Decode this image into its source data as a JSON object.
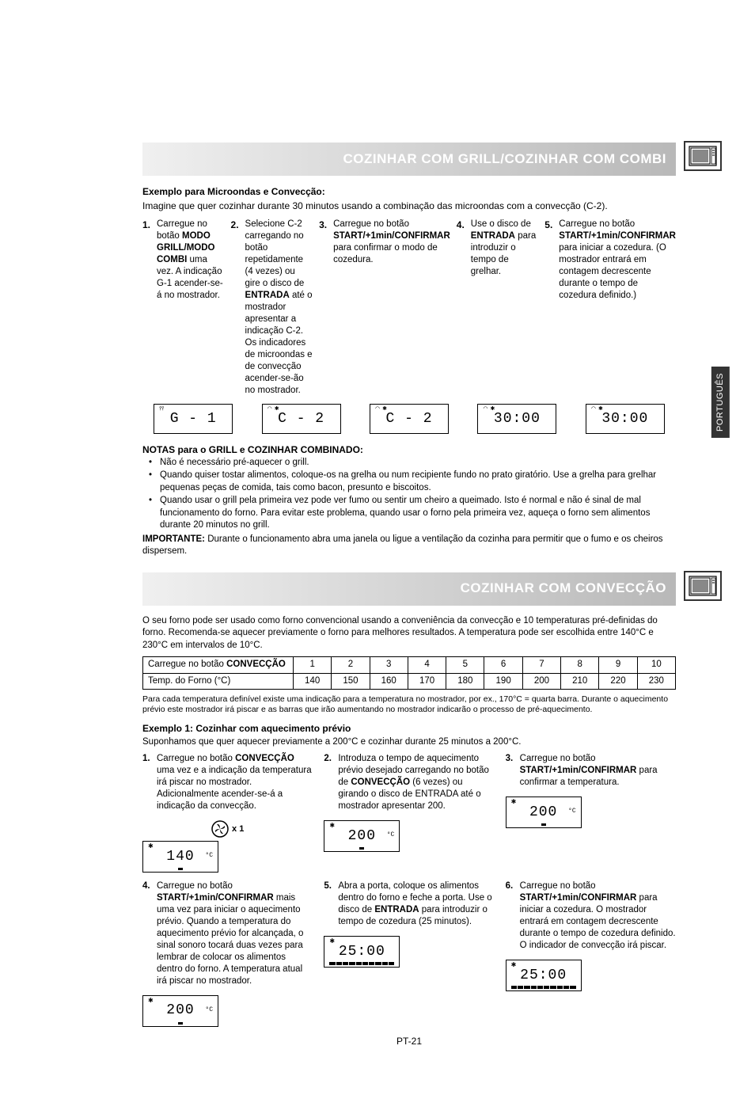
{
  "side_tab": "PORTUGUÊS",
  "page_number": "PT-21",
  "section1": {
    "banner": "COZINHAR COM GRILL/COZINHAR COM COMBI",
    "subtitle": "Exemplo para Microondas e Convecção:",
    "intro": "Imagine que quer cozinhar durante 30 minutos usando a combinação das microondas com a convecção (C-2).",
    "steps": [
      {
        "num": "1.",
        "html": "Carregue no botão <b>MODO GRILL/MODO COMBI</b> uma vez. A indicação G-1 acender-se-á no mostrador."
      },
      {
        "num": "2.",
        "html": "Selecione C-2 carregando no botão repetidamente (4 vezes) ou gire o disco de <b>ENTRADA</b> até o mostrador apresentar a indicação C-2. Os indicadores de microondas e de convecção acender-se-ão no mostrador."
      },
      {
        "num": "3.",
        "html": "Carregue no botão <b>START/+1min/CONFIRMAR</b> para confirmar o modo de cozedura."
      },
      {
        "num": "4.",
        "html": "Use o disco de <b>ENTRADA</b> para introduzir o tempo de grelhar."
      },
      {
        "num": "5.",
        "html": "Carregue no botão <b>START/+1min/CONFIRMAR</b> para iniciar a cozedura. (O mostrador entrará em contagem decrescente durante o tempo de cozedura definido.)"
      }
    ],
    "displays": [
      "G - 1",
      "C - 2",
      "C - 2",
      "30:00",
      "30:00"
    ],
    "notes_title": "NOTAS para o GRILL e COZINHAR COMBINADO:",
    "notes": [
      "Não é necessário pré-aquecer o grill.",
      "Quando quiser tostar alimentos, coloque-os na grelha ou num recipiente fundo no prato giratório. Use a grelha para grelhar pequenas peças de comida, tais como bacon, presunto e biscoitos.",
      "Quando usar o grill pela primeira vez pode ver fumo ou sentir um cheiro a queimado. Isto é normal e não é sinal de mal funcionamento do forno. Para evitar este problema, quando usar o forno pela primeira vez, aqueça o forno sem alimentos durante 20 minutos no grill."
    ],
    "important_label": "IMPORTANTE:",
    "important_text": " Durante o funcionamento abra uma janela ou ligue a ventilação da cozinha para permitir que o fumo e os cheiros dispersem."
  },
  "section2": {
    "banner": "COZINHAR COM CONVECÇÃO",
    "intro": "O seu forno pode ser usado como forno convencional usando a conveniência da convecção e 10 temperaturas pré-definidas do forno. Recomenda-se aquecer previamente o forno para melhores resultados. A temperatura pode ser escolhida entre 140°C e 230°C em intervalos de 10°C.",
    "table": {
      "row1_label_html": "Carregue no botão <b>CONVECÇÃO</b>",
      "row1": [
        "1",
        "2",
        "3",
        "4",
        "5",
        "6",
        "7",
        "8",
        "9",
        "10"
      ],
      "row2_label": "Temp. do Forno (°C)",
      "row2": [
        "140",
        "150",
        "160",
        "170",
        "180",
        "190",
        "200",
        "210",
        "220",
        "230"
      ]
    },
    "small_note": "Para cada temperatura definível existe uma indicação para a temperatura no mostrador, por ex., 170°C = quarta barra. Durante o aquecimento prévio este mostrador irá piscar e as barras que irão aumentando no mostrador indicarão o processo de pré-aquecimento.",
    "ex_title": "Exemplo 1: Cozinhar com aquecimento prévio",
    "ex_intro": "Suponhamos que quer aquecer previamente a 200°C e cozinhar durante 25 minutos a 200°C.",
    "steps_row1": [
      {
        "num": "1.",
        "html": "Carregue no botão <b>CONVECÇÃO</b> uma vez e a indicação da temperatura irá piscar no mostrador. Adicionalmente acender-se-á a indicação da convecção.",
        "display": "140",
        "unit": "°C",
        "fan": "x 1"
      },
      {
        "num": "2.",
        "html": "Introduza o tempo de aquecimento prévio desejado carregando no botão de <b>CONVECÇÃO</b> (6 vezes) ou girando o disco de ENTRADA até o mostrador apresentar 200.",
        "display": "200",
        "unit": "°C"
      },
      {
        "num": "3.",
        "html": "Carregue no botão <b>START/+1min/CONFIRMAR</b> para confirmar a temperatura.",
        "display": "200",
        "unit": "°C"
      }
    ],
    "steps_row2": [
      {
        "num": "4.",
        "html": "Carregue no botão <b>START/+1min/CONFIRMAR</b> mais uma vez para iniciar o aquecimento prévio. Quando a temperatura do aquecimento prévio for alcançada, o sinal sonoro tocará duas vezes para lembrar de colocar os alimentos dentro do forno. A temperatura atual irá piscar no mostrador.",
        "display": "200",
        "unit": "°C"
      },
      {
        "num": "5.",
        "html": "Abra a porta, coloque os alimentos dentro do forno e feche a porta. Use o disco de <b>ENTRADA</b> para introduzir o tempo de cozedura (25 minutos).",
        "display": "25:00",
        "bars": true
      },
      {
        "num": "6.",
        "html": "Carregue no botão <b>START/+1min/CONFIRMAR</b> para iniciar a cozedura. O mostrador entrará em contagem decrescente durante o tempo de cozedura definido. O indicador de convecção irá piscar.",
        "display": "25:00",
        "bars": true
      }
    ]
  },
  "colors": {
    "banner_text": "#ffffff",
    "banner_grad_start": "#f0f0f0",
    "banner_grad_end": "#b8b8b8",
    "text": "#000000",
    "tab_bg": "#333333"
  }
}
